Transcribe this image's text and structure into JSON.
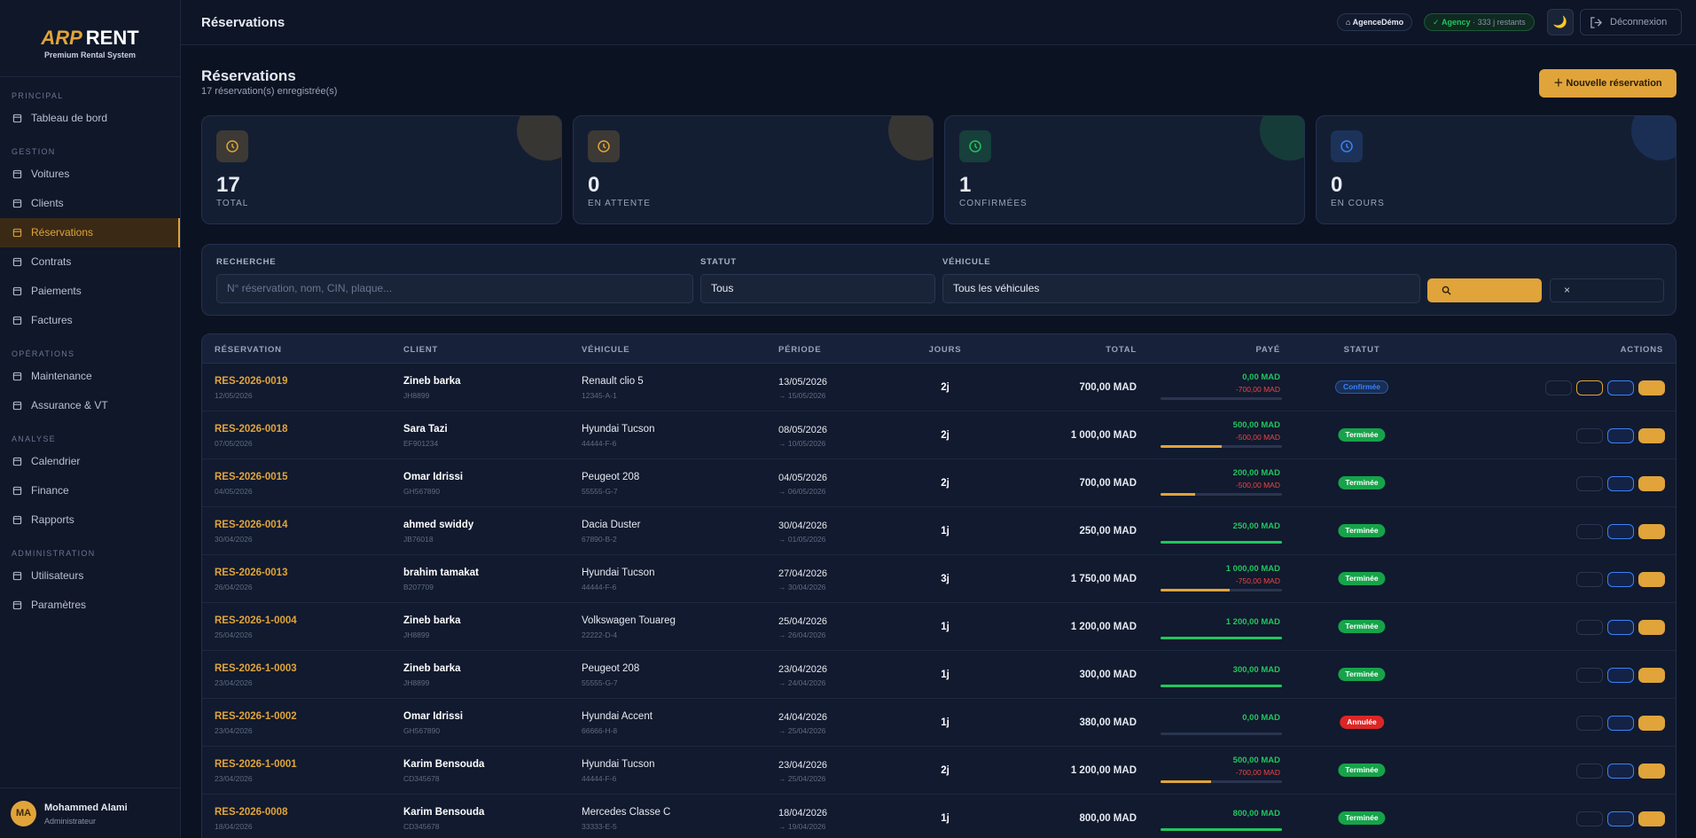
{
  "sidebar": {
    "logo": {
      "brand": "ARP",
      "name": "RENT",
      "tagline": "Premium Rental System"
    },
    "sections": [
      {
        "title": "PRINCIPAL",
        "items": [
          "Tableau de bord"
        ]
      },
      {
        "title": "GESTION",
        "items": [
          "Voitures",
          "Clients",
          "Réservations",
          "Contrats",
          "Paiements",
          "Factures"
        ]
      },
      {
        "title": "OPÉRATIONS",
        "items": [
          "Maintenance",
          "Assurance & VT"
        ]
      },
      {
        "title": "ANALYSE",
        "items": [
          "Calendrier",
          "Finance",
          "Rapports"
        ]
      },
      {
        "title": "ADMINISTRATION",
        "items": [
          "Utilisateurs",
          "Paramètres"
        ]
      }
    ],
    "user": {
      "initials": "MA",
      "name": "Mohammed Alami",
      "role": "Administrateur"
    }
  },
  "header": {
    "title": "Réservations",
    "agency": "AgenceDémo",
    "plan": "Agency",
    "remaining": "· 333 j restants",
    "logout": "Déconnexion"
  },
  "page": {
    "title": "Réservations",
    "subtitle": "17 réservation(s) enregistrée(s)",
    "new_button": "Nouvelle réservation"
  },
  "stats": [
    {
      "value": 17,
      "label": "TOTAL",
      "color": "#e0a43a"
    },
    {
      "value": 0,
      "label": "EN ATTENTE",
      "color": "#e0a43a"
    },
    {
      "value": 1,
      "label": "CONFIRMÉES",
      "color": "#22c55e"
    },
    {
      "value": 0,
      "label": "EN COURS",
      "color": "#3b82f6"
    }
  ],
  "filters": {
    "search_label": "RECHERCHE",
    "search_placeholder": "N° réservation, nom, CIN, plaque...",
    "status_label": "STATUT",
    "status_value": "Tous",
    "vehicle_label": "VÉHICULE",
    "vehicle_value": "Tous les véhicules"
  },
  "table": {
    "headers": [
      "RÉSERVATION",
      "CLIENT",
      "VÉHICULE",
      "PÉRIODE",
      "JOURS",
      "TOTAL",
      "PAYÉ",
      "STATUT",
      "ACTIONS"
    ],
    "rows": [
      {
        "id": "RES-2026-0019",
        "date": "12/05/2026",
        "client": "Zineb barka",
        "cin": "JH8899",
        "vehicle": "Renault clio 5",
        "plate": "12345-A-1",
        "start": "13/05/2026",
        "end": "→ 15/05/2026",
        "days": "2j",
        "total": "700,00 MAD",
        "paid": "0,00 MAD",
        "remaining": "-700,00 MAD",
        "status": "Confirmée",
        "status_color": "#3b82f6"
      },
      {
        "id": "RES-2026-0018",
        "date": "07/05/2026",
        "client": "Sara Tazi",
        "cin": "EF901234",
        "vehicle": "Hyundai Tucson",
        "plate": "44444-F-6",
        "start": "08/05/2026",
        "end": "→ 10/05/2026",
        "days": "2j",
        "total": "1 000,00 MAD",
        "paid": "500,00 MAD",
        "remaining": "-500,00 MAD",
        "status": "Terminée",
        "status_color": "#16a34a"
      },
      {
        "id": "RES-2026-0015",
        "date": "04/05/2026",
        "client": "Omar Idrissi",
        "cin": "GH567890",
        "vehicle": "Peugeot 208",
        "plate": "55555-G-7",
        "start": "04/05/2026",
        "end": "→ 06/05/2026",
        "days": "2j",
        "total": "700,00 MAD",
        "paid": "200,00 MAD",
        "remaining": "-500,00 MAD",
        "status": "Terminée",
        "status_color": "#16a34a"
      },
      {
        "id": "RES-2026-0014",
        "date": "30/04/2026",
        "client": "ahmed swiddy",
        "cin": "JB76018",
        "vehicle": "Dacia Duster",
        "plate": "67890-B-2",
        "start": "30/04/2026",
        "end": "→ 01/05/2026",
        "days": "1j",
        "total": "250,00 MAD",
        "paid": "250,00 MAD",
        "status": "Terminée",
        "status_color": "#16a34a"
      },
      {
        "id": "RES-2026-0013",
        "date": "26/04/2026",
        "client": "brahim tamakat",
        "cin": "B207709",
        "vehicle": "Hyundai Tucson",
        "plate": "44444-F-6",
        "start": "27/04/2026",
        "end": "→ 30/04/2026",
        "days": "3j",
        "total": "1 750,00 MAD",
        "paid": "1 000,00 MAD",
        "remaining": "-750,00 MAD",
        "status": "Terminée",
        "status_color": "#16a34a"
      },
      {
        "id": "RES-2026-1-0004",
        "date": "25/04/2026",
        "client": "Zineb barka",
        "cin": "JH8899",
        "vehicle": "Volkswagen Touareg",
        "plate": "22222-D-4",
        "start": "25/04/2026",
        "end": "→ 26/04/2026",
        "days": "1j",
        "total": "1 200,00 MAD",
        "paid": "1 200,00 MAD",
        "status": "Terminée",
        "status_color": "#16a34a"
      },
      {
        "id": "RES-2026-1-0003",
        "date": "23/04/2026",
        "client": "Zineb barka",
        "cin": "JH8899",
        "vehicle": "Peugeot 208",
        "plate": "55555-G-7",
        "start": "23/04/2026",
        "end": "→ 24/04/2026",
        "days": "1j",
        "total": "300,00 MAD",
        "paid": "300,00 MAD",
        "status": "Terminée",
        "status_color": "#16a34a"
      },
      {
        "id": "RES-2026-1-0002",
        "date": "23/04/2026",
        "client": "Omar Idrissi",
        "cin": "GH567890",
        "vehicle": "Hyundai Accent",
        "plate": "66666-H-8",
        "start": "24/04/2026",
        "end": "→ 25/04/2026",
        "days": "1j",
        "total": "380,00 MAD",
        "paid": "0,00 MAD",
        "status": "Annulée",
        "status_color": "#dc2626"
      },
      {
        "id": "RES-2026-1-0001",
        "date": "23/04/2026",
        "client": "Karim Bensouda",
        "cin": "CD345678",
        "vehicle": "Hyundai Tucson",
        "plate": "44444-F-6",
        "start": "23/04/2026",
        "end": "→ 25/04/2026",
        "days": "2j",
        "total": "1 200,00 MAD",
        "paid": "500,00 MAD",
        "remaining": "-700,00 MAD",
        "status": "Terminée",
        "status_color": "#16a34a"
      },
      {
        "id": "RES-2026-0008",
        "date": "18/04/2026",
        "client": "Karim Bensouda",
        "cin": "CD345678",
        "vehicle": "Mercedes Classe C",
        "plate": "33333-E-5",
        "start": "18/04/2026",
        "end": "→ 19/04/2026",
        "days": "1j",
        "total": "800,00 MAD",
        "paid": "800,00 MAD",
        "status": "Terminée",
        "status_color": "#16a34a"
      }
    ]
  }
}
